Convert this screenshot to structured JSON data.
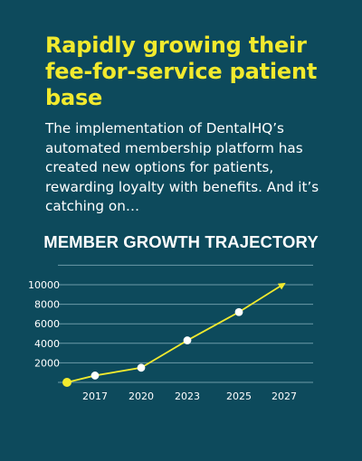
{
  "headline": "Rapidly growing their fee-for-service patient base",
  "intro": "The implementation of DentalHQ’s automated membership platform has created new options for patients, rewarding loyalty with benefits. And it’s catching on…",
  "colors": {
    "background": "#0d4a5c",
    "accent": "#f2ea2e",
    "text": "#ffffff",
    "gridline": "#6d9aa8"
  },
  "chart_data": {
    "type": "line",
    "title": "MEMBER GROWTH TRAJECTORY",
    "xlabel": "",
    "ylabel": "",
    "x_ticks": [
      "2017",
      "2020",
      "2023",
      "2025",
      "2027"
    ],
    "y_ticks": [
      10000,
      8000,
      6000,
      4000,
      2000
    ],
    "ylim": [
      0,
      12000
    ],
    "grid": true,
    "arrow_at_end": true,
    "series": [
      {
        "x": [
          "",
          "2017",
          "2020",
          "2023",
          "2025",
          "2027"
        ],
        "y": [
          0,
          700,
          1500,
          4300,
          7200,
          10100
        ],
        "markers": [
          true,
          true,
          true,
          true,
          true,
          false
        ],
        "first_marker_color": "#f2ea2e",
        "marker_color": "#ffffff",
        "line_color": "#f2ea2e"
      }
    ]
  }
}
